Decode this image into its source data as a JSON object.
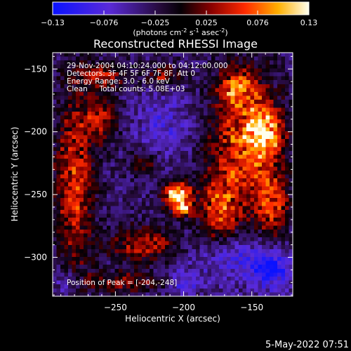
{
  "colorbar": {
    "ticks": [
      "-0.13",
      "-0.076",
      "-0.025",
      "0.025",
      "0.076",
      "0.13"
    ],
    "unit_prefix": "(photons cm",
    "unit_exp1": "-2",
    "unit_mid": " s",
    "unit_exp2": "-1",
    "unit_suffix": " asec",
    "unit_exp3": "-2",
    "unit_close": ")"
  },
  "annotations": {
    "time_range": "29-Nov-2004 04:10:24.000 to 04:12:00.000",
    "detectors": "Detectors: 3F 4F 5F 6F 7F 8F, Att 0",
    "energy": "Energy Range: 3.0 - 6.0 keV",
    "clean": "Clean     Total counts: 5.08E+03",
    "peak": "Position of Peak = [-204,-248]"
  },
  "footer": {
    "date": "5-May-2022 07:51"
  },
  "chart_data": {
    "type": "heatmap",
    "title": "Reconstructed RHESSI Image",
    "xlabel": "Heliocentric X (arcsec)",
    "ylabel": "Heliocentric Y (arcsec)",
    "xlim": [
      -296,
      -120
    ],
    "ylim": [
      -331,
      -137
    ],
    "x_ticks": [
      -250,
      -200,
      -150
    ],
    "x_tick_labels": [
      "−250",
      "−200",
      "−150"
    ],
    "y_ticks": [
      -150,
      -200,
      -250,
      -300
    ],
    "y_tick_labels": [
      "−150",
      "−200",
      "−250",
      "−300"
    ],
    "value_range": [
      -0.13,
      0.13
    ],
    "peak": {
      "x": -204,
      "y": -248,
      "value": 0.13
    },
    "bright_regions": [
      {
        "x": -205,
        "y": -250,
        "rx": 10,
        "ry": 10,
        "value": 0.13
      },
      {
        "x": -200,
        "y": -262,
        "rx": 7,
        "ry": 6,
        "value": 0.07
      },
      {
        "x": -280,
        "y": -240,
        "rx": 14,
        "ry": 70,
        "value": 0.06
      },
      {
        "x": -260,
        "y": -190,
        "rx": 12,
        "ry": 18,
        "value": 0.05
      },
      {
        "x": -155,
        "y": -210,
        "rx": 25,
        "ry": 55,
        "value": 0.07
      },
      {
        "x": -140,
        "y": -200,
        "rx": 12,
        "ry": 18,
        "value": 0.08
      },
      {
        "x": -135,
        "y": -260,
        "rx": 12,
        "ry": 25,
        "value": 0.05
      },
      {
        "x": -230,
        "y": -290,
        "rx": 25,
        "ry": 14,
        "value": 0.05
      },
      {
        "x": -175,
        "y": -265,
        "rx": 14,
        "ry": 30,
        "value": 0.05
      },
      {
        "x": -260,
        "y": -155,
        "rx": 20,
        "ry": 10,
        "value": 0.04
      },
      {
        "x": -215,
        "y": -155,
        "rx": 12,
        "ry": 8,
        "value": 0.04
      },
      {
        "x": -160,
        "y": -165,
        "rx": 14,
        "ry": 14,
        "value": 0.05
      },
      {
        "x": -230,
        "y": -225,
        "rx": 10,
        "ry": 10,
        "value": 0.03
      },
      {
        "x": -245,
        "y": -320,
        "rx": 30,
        "ry": 8,
        "value": 0.03
      }
    ],
    "dark_regions": [
      {
        "x": -165,
        "y": -300,
        "rx": 28,
        "ry": 20,
        "value": -0.06
      },
      {
        "x": -135,
        "y": -310,
        "rx": 14,
        "ry": 15,
        "value": -0.08
      },
      {
        "x": -215,
        "y": -195,
        "rx": 22,
        "ry": 25,
        "value": -0.04
      },
      {
        "x": -285,
        "y": -320,
        "rx": 10,
        "ry": 10,
        "value": -0.05
      },
      {
        "x": -200,
        "y": -320,
        "rx": 10,
        "ry": 10,
        "value": -0.05
      }
    ]
  }
}
